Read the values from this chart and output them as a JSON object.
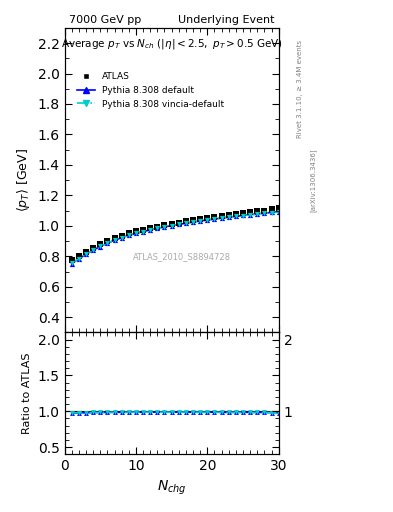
{
  "title_left": "7000 GeV pp",
  "title_right": "Underlying Event",
  "plot_title": "Average p_{T} vs N_{ch} (|\\eta| < 2.5, p_{T} > 0.5 GeV)",
  "xlabel": "N_{chg}",
  "ylabel_main": "\\langle p_{T} \\rangle [GeV]",
  "ylabel_ratio": "Ratio to ATLAS",
  "right_label_top": "Rivet 3.1.10, \\geq 3.4M events",
  "right_label_bottom": "[arXiv:1306.3436]",
  "watermark": "ATLAS_2010_S8894728",
  "xlim": [
    0,
    30
  ],
  "ylim_main": [
    0.3,
    2.3
  ],
  "ylim_ratio": [
    0.4,
    2.1
  ],
  "yticks_main": [
    0.4,
    0.6,
    0.8,
    1.0,
    1.2,
    1.4,
    1.6,
    1.8,
    2.0,
    2.2
  ],
  "yticks_ratio": [
    0.5,
    1.0,
    1.5,
    2.0
  ],
  "data_x": [
    1,
    2,
    3,
    4,
    5,
    6,
    7,
    8,
    9,
    10,
    11,
    12,
    13,
    14,
    15,
    16,
    17,
    18,
    19,
    20,
    21,
    22,
    23,
    24,
    25,
    26,
    27,
    28,
    29,
    30
  ],
  "atlas_y": [
    0.775,
    0.8,
    0.83,
    0.855,
    0.878,
    0.9,
    0.918,
    0.935,
    0.95,
    0.963,
    0.975,
    0.985,
    0.995,
    1.005,
    1.013,
    1.02,
    1.03,
    1.038,
    1.045,
    1.052,
    1.058,
    1.065,
    1.072,
    1.078,
    1.083,
    1.09,
    1.095,
    1.1,
    1.108,
    1.115
  ],
  "atlas_yerr": [
    0.01,
    0.008,
    0.007,
    0.006,
    0.006,
    0.005,
    0.005,
    0.005,
    0.005,
    0.005,
    0.005,
    0.005,
    0.005,
    0.005,
    0.005,
    0.005,
    0.005,
    0.005,
    0.005,
    0.005,
    0.005,
    0.005,
    0.005,
    0.005,
    0.006,
    0.006,
    0.006,
    0.007,
    0.008,
    0.009
  ],
  "pythia_default_y": [
    0.752,
    0.783,
    0.813,
    0.84,
    0.864,
    0.886,
    0.905,
    0.922,
    0.937,
    0.95,
    0.962,
    0.973,
    0.983,
    0.993,
    1.001,
    1.009,
    1.017,
    1.025,
    1.032,
    1.038,
    1.045,
    1.051,
    1.057,
    1.062,
    1.068,
    1.073,
    1.078,
    1.083,
    1.088,
    1.093
  ],
  "pythia_vincia_y": [
    0.755,
    0.785,
    0.815,
    0.841,
    0.865,
    0.887,
    0.906,
    0.922,
    0.937,
    0.95,
    0.962,
    0.973,
    0.983,
    0.992,
    1.001,
    1.009,
    1.017,
    1.024,
    1.031,
    1.038,
    1.044,
    1.05,
    1.056,
    1.062,
    1.067,
    1.072,
    1.077,
    1.082,
    1.087,
    1.092
  ],
  "atlas_color": "#000000",
  "pythia_default_color": "#0000ff",
  "pythia_vincia_color": "#00cccc",
  "atlas_band_color": "#ffff99",
  "ratio_default_color": "#0000ff",
  "ratio_vincia_color": "#00cccc",
  "ratio_default_y": [
    0.97,
    0.979,
    0.979,
    0.983,
    0.984,
    0.984,
    0.985,
    0.986,
    0.987,
    0.987,
    0.987,
    0.988,
    0.988,
    0.988,
    0.988,
    0.989,
    0.987,
    0.987,
    0.987,
    0.986,
    0.987,
    0.986,
    0.985,
    0.985,
    0.986,
    0.985,
    0.984,
    0.984,
    0.982,
    0.98
  ],
  "ratio_vincia_y": [
    0.974,
    0.981,
    0.982,
    0.984,
    0.985,
    0.986,
    0.986,
    0.986,
    0.986,
    0.987,
    0.987,
    0.988,
    0.988,
    0.987,
    0.988,
    0.989,
    0.987,
    0.987,
    0.986,
    0.986,
    0.987,
    0.985,
    0.985,
    0.985,
    0.985,
    0.984,
    0.984,
    0.984,
    0.981,
    0.98
  ],
  "ratio_band_y": [
    1.013,
    1.01,
    1.008,
    1.007,
    1.007,
    1.006,
    1.005,
    1.005,
    1.005,
    1.005,
    1.005,
    1.005,
    1.005,
    1.005,
    1.005,
    1.005,
    1.005,
    1.005,
    1.005,
    1.005,
    1.005,
    1.005,
    1.005,
    1.005,
    1.006,
    1.006,
    1.006,
    1.006,
    1.007,
    1.008
  ],
  "ratio_band_y_low": [
    0.987,
    0.99,
    0.992,
    0.993,
    0.993,
    0.994,
    0.995,
    0.995,
    0.995,
    0.995,
    0.995,
    0.995,
    0.995,
    0.995,
    0.995,
    0.995,
    0.995,
    0.995,
    0.995,
    0.995,
    0.995,
    0.995,
    0.995,
    0.995,
    0.994,
    0.994,
    0.994,
    0.994,
    0.993,
    0.992
  ]
}
